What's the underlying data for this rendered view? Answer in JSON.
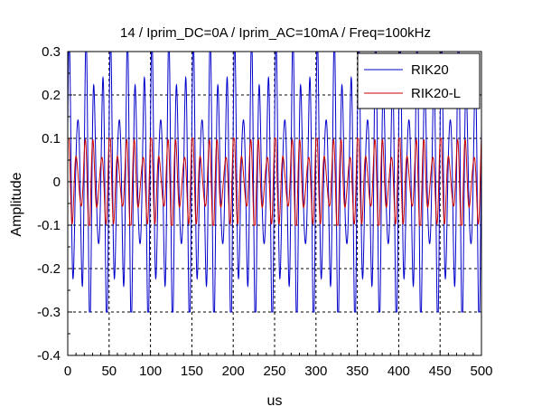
{
  "chart_data": {
    "type": "line",
    "title": "14 / Iprim_DC=0A / Iprim_AC=10mA / Freq=100kHz",
    "xlabel": "us",
    "ylabel": "Amplitude",
    "xlim": [
      0,
      500
    ],
    "ylim": [
      -0.4,
      0.3
    ],
    "xticks": [
      0,
      50,
      100,
      150,
      200,
      250,
      300,
      350,
      400,
      450,
      500
    ],
    "yticks": [
      -0.4,
      -0.3,
      -0.2,
      -0.1,
      0,
      0.1,
      0.2,
      0.3
    ],
    "xtick_labels": [
      "0",
      "50",
      "100",
      "150",
      "200",
      "250",
      "300",
      "350",
      "400",
      "450",
      "500"
    ],
    "ytick_labels": [
      "-0.4",
      "-0.3",
      "-0.2",
      "-0.1",
      "0",
      "0.1",
      "0.2",
      "0.3"
    ],
    "grid": "dashed",
    "legend_position": "top-right",
    "series": [
      {
        "name": "RIK20",
        "color": "#0000cc",
        "amplitude": 0.3,
        "frequency_khz": 100,
        "beat_period_us": 25
      },
      {
        "name": "RIK20-L",
        "color": "#cc0000",
        "amplitude": 0.1,
        "frequency_khz": 100,
        "beat_period_us": 25
      }
    ]
  }
}
